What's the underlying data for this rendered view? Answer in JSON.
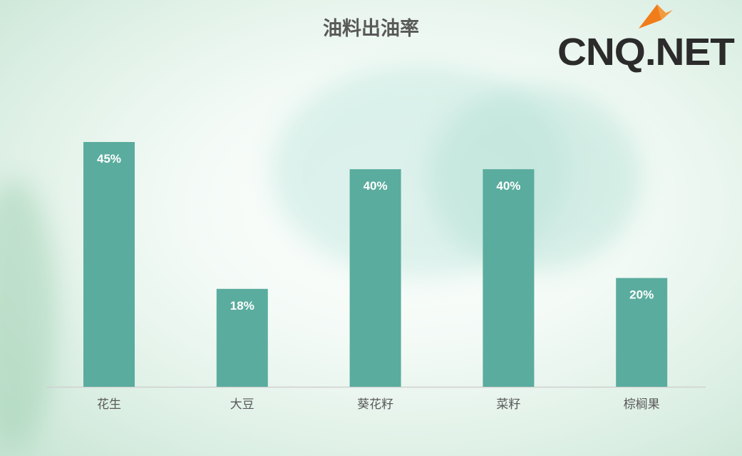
{
  "chart_data": {
    "type": "bar",
    "title": "油料出油率",
    "categories": [
      "花生",
      "大豆",
      "葵花籽",
      "菜籽",
      "棕榈果"
    ],
    "values": [
      45,
      18,
      40,
      40,
      20
    ],
    "data_labels": [
      "45%",
      "18%",
      "40%",
      "40%",
      "20%"
    ],
    "xlabel": "",
    "ylabel": "",
    "ylim": [
      0,
      45
    ],
    "grid": false,
    "legend": "none",
    "bar_color": "#5aac9e"
  },
  "logo": {
    "text": "CNQ.NET",
    "accent_color": "#f07d1a"
  }
}
